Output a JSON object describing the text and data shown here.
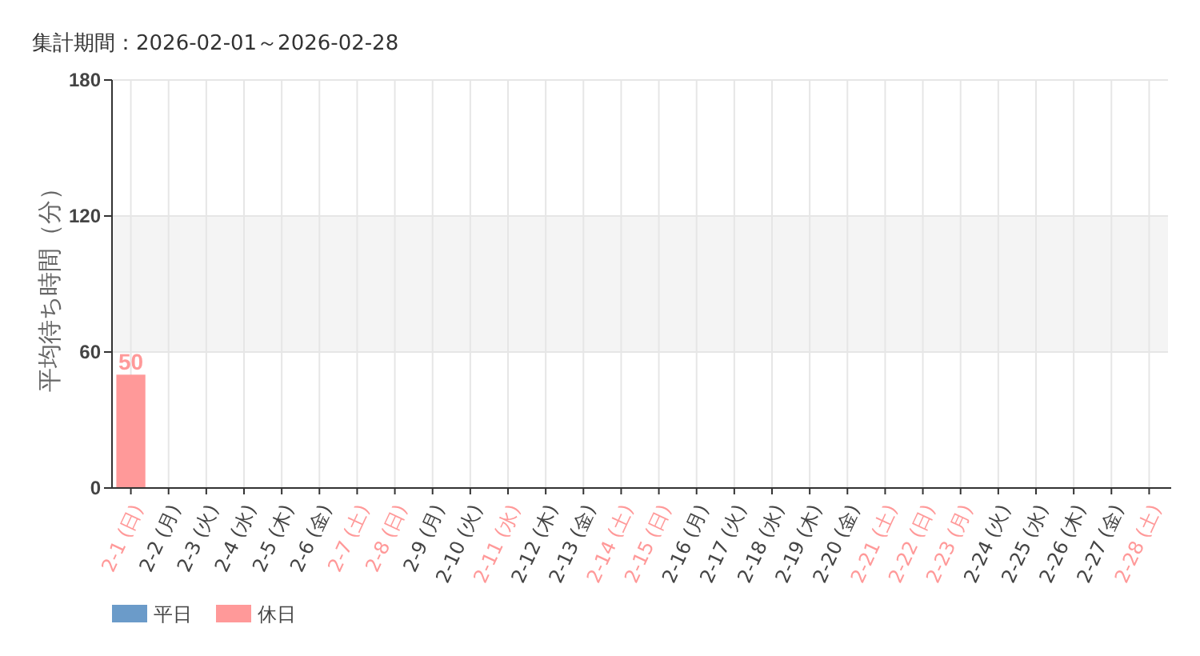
{
  "chart_data": {
    "type": "bar",
    "title": "集計期間：2026-02-01～2026-02-28",
    "ylabel": "平均待ち時間（分）",
    "categories": [
      "2-1 (日)",
      "2-2 (月)",
      "2-3 (火)",
      "2-4 (水)",
      "2-5 (木)",
      "2-6 (金)",
      "2-7 (土)",
      "2-8 (日)",
      "2-9 (月)",
      "2-10 (火)",
      "2-11 (水)",
      "2-12 (木)",
      "2-13 (金)",
      "2-14 (土)",
      "2-15 (日)",
      "2-16 (月)",
      "2-17 (火)",
      "2-18 (水)",
      "2-19 (木)",
      "2-20 (金)",
      "2-21 (土)",
      "2-22 (日)",
      "2-23 (月)",
      "2-24 (火)",
      "2-25 (水)",
      "2-26 (木)",
      "2-27 (金)",
      "2-28 (土)"
    ],
    "series": [
      {
        "name": "平日",
        "color": "#6b9bc9",
        "values": [
          null,
          null,
          null,
          null,
          null,
          null,
          null,
          null,
          null,
          null,
          null,
          null,
          null,
          null,
          null,
          null,
          null,
          null,
          null,
          null,
          null,
          null,
          null,
          null,
          null,
          null,
          null,
          null
        ]
      },
      {
        "name": "休日",
        "color": "#ff9999",
        "values": [
          50,
          null,
          null,
          null,
          null,
          null,
          null,
          null,
          null,
          null,
          null,
          null,
          null,
          null,
          null,
          null,
          null,
          null,
          null,
          null,
          null,
          null,
          null,
          null,
          null,
          null,
          null,
          null
        ]
      }
    ],
    "colors": [
      "#ff9999",
      "#6b9bc9",
      "#6b9bc9",
      "#6b9bc9",
      "#6b9bc9",
      "#6b9bc9",
      "#ff9999",
      "#ff9999",
      "#6b9bc9",
      "#6b9bc9",
      "#ff9999",
      "#6b9bc9",
      "#6b9bc9",
      "#ff9999",
      "#ff9999",
      "#6b9bc9",
      "#6b9bc9",
      "#6b9bc9",
      "#6b9bc9",
      "#6b9bc9",
      "#ff9999",
      "#ff9999",
      "#ff9999",
      "#6b9bc9",
      "#6b9bc9",
      "#6b9bc9",
      "#6b9bc9",
      "#ff9999"
    ],
    "stacked": true,
    "ylim": [
      0,
      180
    ],
    "yticks": [
      0,
      60,
      120,
      180
    ],
    "grid": true,
    "bands": [
      {
        "axis": "y",
        "from": 60,
        "to": 120,
        "color": "#f4f4f4"
      }
    ],
    "data_labels": true,
    "legend": "bottom left"
  }
}
